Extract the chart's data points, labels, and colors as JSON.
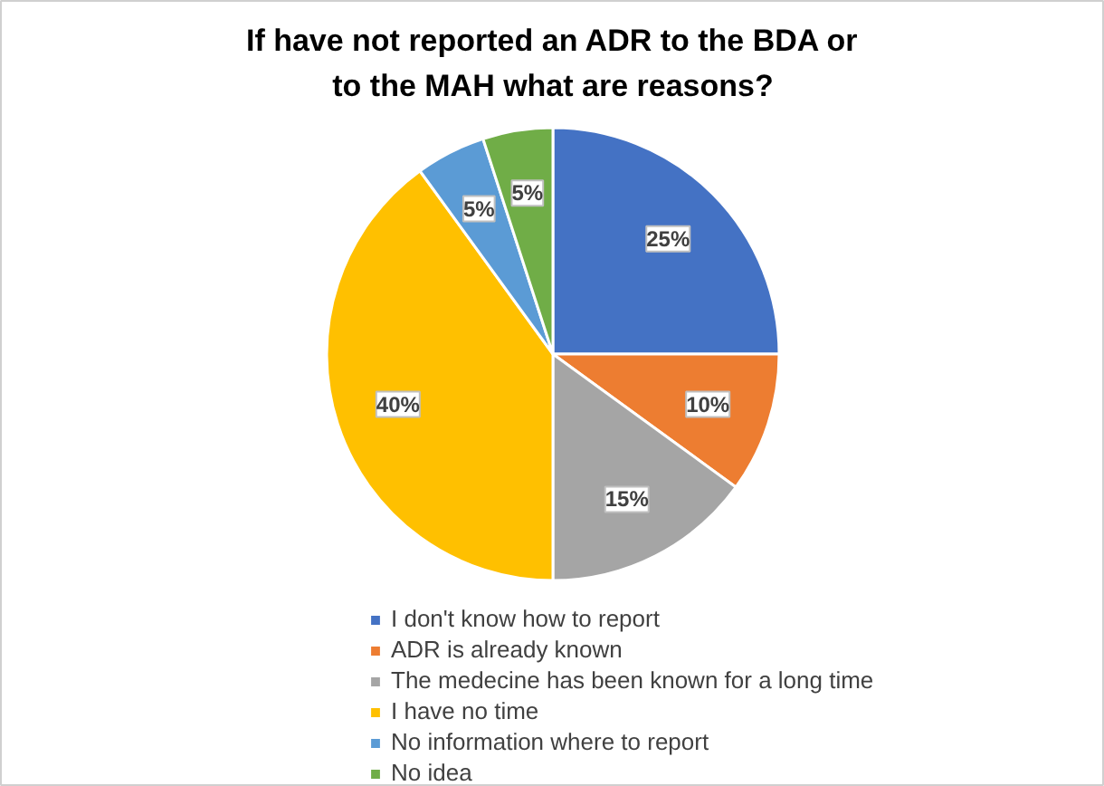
{
  "chart_data": {
    "type": "pie",
    "title": "If have not reported an ADR to the BDA or to the MAH what are reasons?",
    "categories": [
      "I don't know how to report",
      "ADR is already known",
      "The medecine has been known for a long time",
      "I have no time",
      "No information where to report",
      "No idea"
    ],
    "values": [
      25,
      10,
      15,
      40,
      5,
      5
    ],
    "colors": [
      "#4472c4",
      "#ed7d31",
      "#a5a5a5",
      "#ffc000",
      "#5b9bd5",
      "#70ad47"
    ],
    "value_labels": [
      "25%",
      "10%",
      "15%",
      "40%",
      "5%",
      "5%"
    ],
    "legend": "bottom"
  }
}
